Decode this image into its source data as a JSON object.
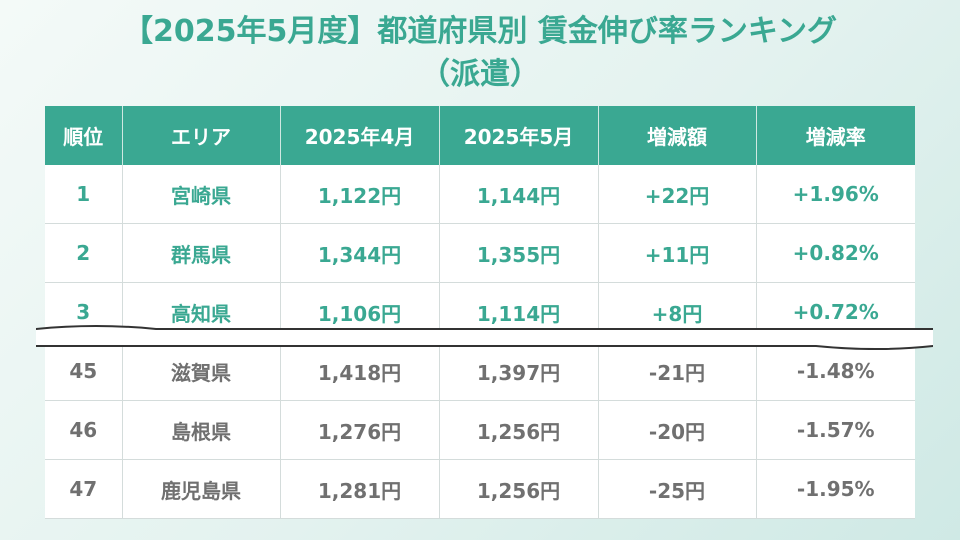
{
  "title": {
    "line1": "【2025年5月度】都道府県別 賃金伸び率ランキング",
    "line2": "（派遣）"
  },
  "table": {
    "headers": [
      "順位",
      "エリア",
      "2025年4月",
      "2025年5月",
      "増減額",
      "増減率"
    ],
    "top_rows": [
      {
        "rank": "1",
        "area": "宮崎県",
        "april": "1,122円",
        "may": "1,144円",
        "diff": "+22円",
        "rate": "+1.96%"
      },
      {
        "rank": "2",
        "area": "群馬県",
        "april": "1,344円",
        "may": "1,355円",
        "diff": "+11円",
        "rate": "+0.82%"
      },
      {
        "rank": "3",
        "area": "高知県",
        "april": "1,106円",
        "may": "1,114円",
        "diff": "+8円",
        "rate": "+0.72%"
      }
    ],
    "bottom_rows": [
      {
        "rank": "45",
        "area": "滋賀県",
        "april": "1,418円",
        "may": "1,397円",
        "diff": "-21円",
        "rate": "-1.48%"
      },
      {
        "rank": "46",
        "area": "島根県",
        "april": "1,276円",
        "may": "1,256円",
        "diff": "-20円",
        "rate": "-1.57%"
      },
      {
        "rank": "47",
        "area": "鹿児島県",
        "april": "1,281円",
        "may": "1,256円",
        "diff": "-25円",
        "rate": "-1.95%"
      }
    ]
  },
  "colors": {
    "accent": "#3aa892",
    "top_text": "#3aa892",
    "bottom_text": "#707070",
    "header_text": "#ffffff"
  }
}
